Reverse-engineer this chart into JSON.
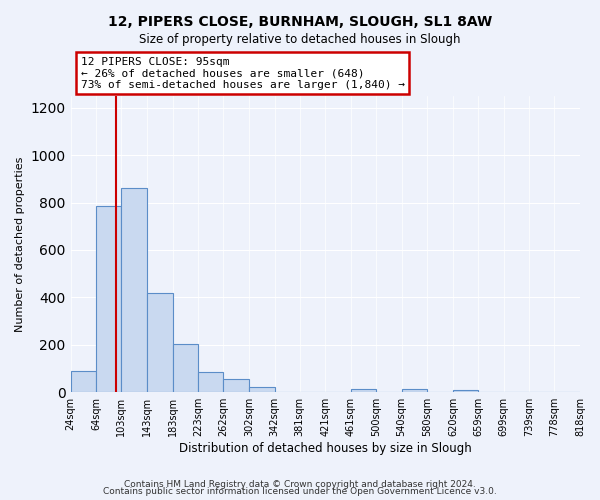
{
  "title": "12, PIPERS CLOSE, BURNHAM, SLOUGH, SL1 8AW",
  "subtitle": "Size of property relative to detached houses in Slough",
  "xlabel": "Distribution of detached houses by size in Slough",
  "ylabel": "Number of detached properties",
  "bar_color": "#c9d9f0",
  "bar_edge_color": "#5b8dc8",
  "ylim": [
    0,
    1250
  ],
  "yticks": [
    0,
    200,
    400,
    600,
    800,
    1000,
    1200
  ],
  "property_line_x": 95,
  "annotation_line1": "12 PIPERS CLOSE: 95sqm",
  "annotation_line2": "← 26% of detached houses are smaller (648)",
  "annotation_line3": "73% of semi-detached houses are larger (1,840) →",
  "annotation_box_color": "#ffffff",
  "annotation_box_edge": "#cc0000",
  "red_line_color": "#cc0000",
  "footer_line1": "Contains HM Land Registry data © Crown copyright and database right 2024.",
  "footer_line2": "Contains public sector information licensed under the Open Government Licence v3.0.",
  "background_color": "#eef2fb",
  "bin_labels": [
    "24sqm",
    "64sqm",
    "103sqm",
    "143sqm",
    "183sqm",
    "223sqm",
    "262sqm",
    "302sqm",
    "342sqm",
    "381sqm",
    "421sqm",
    "461sqm",
    "500sqm",
    "540sqm",
    "580sqm",
    "620sqm",
    "659sqm",
    "699sqm",
    "739sqm",
    "778sqm",
    "818sqm"
  ],
  "bins_start": [
    24,
    64,
    103,
    143,
    183,
    223,
    262,
    302,
    342,
    381,
    421,
    461,
    500,
    540,
    580,
    620,
    659,
    699,
    739,
    778
  ],
  "bin_widths": [
    40,
    39,
    40,
    40,
    40,
    39,
    40,
    40,
    39,
    40,
    40,
    39,
    40,
    40,
    40,
    39,
    40,
    40,
    39,
    40
  ],
  "all_bar_heights": [
    90,
    785,
    860,
    420,
    205,
    85,
    55,
    20,
    0,
    0,
    0,
    15,
    0,
    15,
    0,
    10,
    0,
    0,
    0,
    0
  ]
}
